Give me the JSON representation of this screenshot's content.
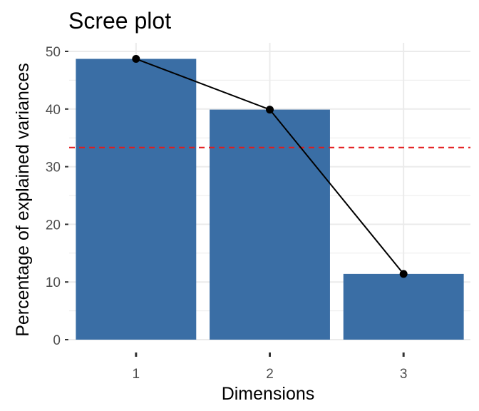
{
  "chart_data": {
    "type": "bar",
    "title": "Scree plot",
    "xlabel": "Dimensions",
    "ylabel": "Percentage of explained variances",
    "categories": [
      "1",
      "2",
      "3"
    ],
    "values": [
      48.7,
      39.9,
      11.4
    ],
    "ylim": [
      0,
      50
    ],
    "yticks": [
      0,
      10,
      20,
      30,
      40,
      50
    ],
    "reference_line": {
      "value": 33.33,
      "color": "#e31a1c",
      "style": "dashed"
    },
    "line_overlay": true,
    "grid": true,
    "colors": {
      "bar": "#3a6ea5",
      "line": "#000000",
      "grid": "#ebebeb"
    }
  }
}
